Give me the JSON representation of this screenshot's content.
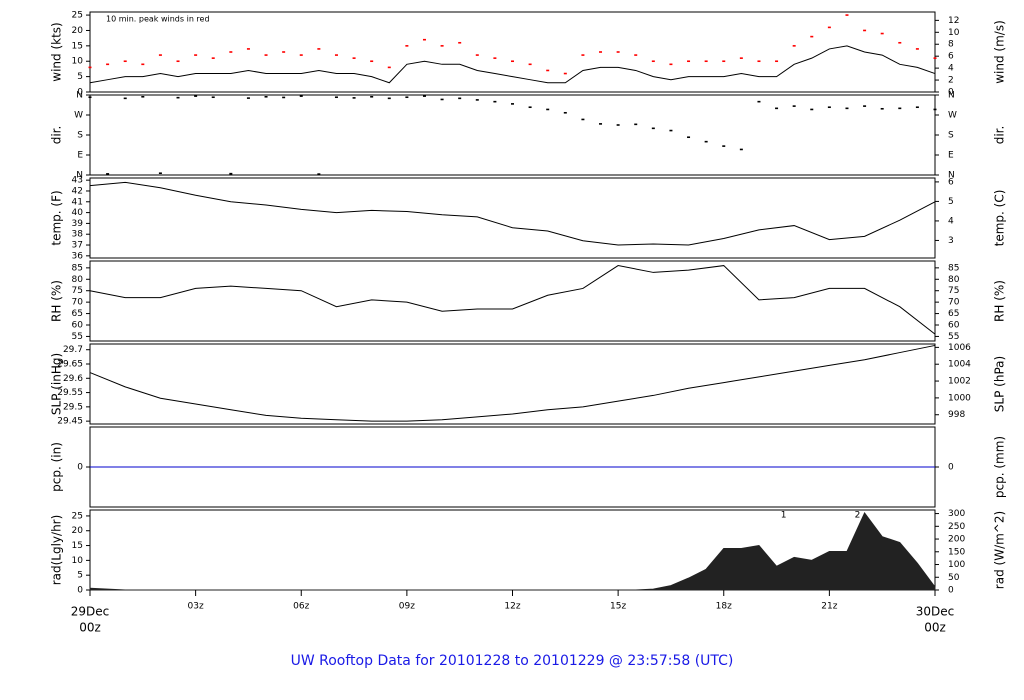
{
  "title": "UW Rooftop Data for 20101228  to  20101229 @ 23:57:58  (UTC)",
  "chart_data": [
    {
      "type": "line",
      "ylabel": "wind (kts)",
      "y2label": "wind (m/s)",
      "annotation": "10 min. peak winds in red",
      "ylim": [
        0,
        26
      ],
      "yticks": [
        0,
        5,
        10,
        15,
        20,
        25
      ],
      "y2lim": [
        0,
        13.4
      ],
      "y2ticks": [
        0,
        2,
        4,
        6,
        8,
        10,
        12
      ],
      "x": [
        0,
        0.5,
        1,
        1.5,
        2,
        2.5,
        3,
        3.5,
        4,
        4.5,
        5,
        5.5,
        6,
        6.5,
        7,
        7.5,
        8,
        8.5,
        9,
        9.5,
        10,
        10.5,
        11,
        11.5,
        12,
        12.5,
        13,
        13.5,
        14,
        14.5,
        15,
        15.5,
        16,
        16.5,
        17,
        17.5,
        18,
        18.5,
        19,
        19.5,
        20,
        20.5,
        21,
        21.5,
        22,
        22.5,
        23,
        23.5,
        24
      ],
      "series": [
        {
          "color": "#000000",
          "mark": "line",
          "values": [
            3,
            4,
            5,
            5,
            6,
            5,
            6,
            6,
            6,
            7,
            6,
            6,
            6,
            7,
            6,
            6,
            5,
            3,
            9,
            10,
            9,
            9,
            7,
            6,
            5,
            4,
            3,
            3,
            7,
            8,
            8,
            7,
            5,
            4,
            5,
            5,
            5,
            6,
            5,
            5,
            9,
            11,
            14,
            15,
            13,
            12,
            9,
            8,
            6
          ]
        },
        {
          "color": "#ff0000",
          "mark": "dot",
          "values": [
            8,
            9,
            10,
            9,
            12,
            10,
            12,
            11,
            13,
            14,
            12,
            13,
            12,
            14,
            12,
            11,
            10,
            8,
            15,
            17,
            15,
            16,
            12,
            11,
            10,
            9,
            7,
            6,
            12,
            13,
            13,
            12,
            10,
            9,
            10,
            10,
            10,
            11,
            10,
            10,
            15,
            18,
            21,
            25,
            20,
            19,
            16,
            14,
            11
          ]
        }
      ]
    },
    {
      "type": "scatter",
      "ylabel": "dir.",
      "y2label": "dir.",
      "ylim": [
        0,
        360
      ],
      "yticks": [
        {
          "value": 0,
          "label": "N"
        },
        {
          "value": 90,
          "label": "E"
        },
        {
          "value": 180,
          "label": "S"
        },
        {
          "value": 270,
          "label": "W"
        },
        {
          "value": 360,
          "label": "N"
        }
      ],
      "y2lim": [
        0,
        360
      ],
      "y2ticks": [
        {
          "value": 0,
          "label": "N"
        },
        {
          "value": 90,
          "label": "E"
        },
        {
          "value": 180,
          "label": "S"
        },
        {
          "value": 270,
          "label": "W"
        },
        {
          "value": 360,
          "label": "N"
        }
      ],
      "x": [
        0,
        0.5,
        1,
        1.5,
        2,
        2.5,
        3,
        3.5,
        4,
        4.5,
        5,
        5.5,
        6,
        6.5,
        7,
        7.5,
        8,
        8.5,
        9,
        9.5,
        10,
        10.5,
        11,
        11.5,
        12,
        12.5,
        13,
        13.5,
        14,
        14.5,
        15,
        15.5,
        16,
        16.5,
        17,
        17.5,
        18,
        18.5,
        19,
        19.5,
        20,
        20.5,
        21,
        21.5,
        22,
        22.5,
        23,
        23.5,
        24
      ],
      "series": [
        {
          "color": "#000000",
          "mark": "dot",
          "values": [
            350,
            5,
            345,
            352,
            8,
            348,
            355,
            350,
            6,
            346,
            352,
            349,
            355,
            4,
            350,
            347,
            352,
            345,
            350,
            355,
            340,
            345,
            338,
            330,
            320,
            305,
            295,
            280,
            250,
            230,
            225,
            228,
            210,
            200,
            170,
            150,
            130,
            115,
            330,
            300,
            310,
            295,
            305,
            300,
            310,
            298,
            300,
            305,
            295
          ]
        }
      ]
    },
    {
      "type": "line",
      "ylabel": "temp. (F)",
      "y2label": "temp. (C)",
      "ylim": [
        35.8,
        43.2
      ],
      "yticks": [
        36,
        37,
        38,
        39,
        40,
        41,
        42,
        43
      ],
      "y2lim": [
        2.1,
        6.2
      ],
      "y2ticks": [
        3,
        4,
        5,
        6
      ],
      "x": [
        0,
        1,
        2,
        3,
        4,
        5,
        6,
        7,
        8,
        9,
        10,
        11,
        12,
        13,
        14,
        15,
        16,
        17,
        18,
        19,
        20,
        21,
        22,
        23,
        24
      ],
      "series": [
        {
          "color": "#000000",
          "mark": "line",
          "values": [
            42.5,
            42.8,
            42.3,
            41.6,
            41,
            40.7,
            40.3,
            40,
            40.2,
            40.1,
            39.8,
            39.6,
            38.6,
            38.3,
            37.4,
            37,
            37.1,
            37,
            37.6,
            38.4,
            38.8,
            37.5,
            37.8,
            39.3,
            41
          ]
        }
      ]
    },
    {
      "type": "line",
      "ylabel": "RH (%)",
      "y2label": "RH (%)",
      "ylim": [
        53,
        88
      ],
      "yticks": [
        55,
        60,
        65,
        70,
        75,
        80,
        85
      ],
      "y2lim": [
        53,
        88
      ],
      "y2ticks": [
        55,
        60,
        65,
        70,
        75,
        80,
        85
      ],
      "x": [
        0,
        1,
        2,
        3,
        4,
        5,
        6,
        7,
        8,
        9,
        10,
        11,
        12,
        13,
        14,
        15,
        16,
        17,
        18,
        19,
        20,
        21,
        22,
        23,
        24
      ],
      "series": [
        {
          "color": "#000000",
          "mark": "line",
          "values": [
            75,
            72,
            72,
            76,
            77,
            76,
            75,
            68,
            71,
            70,
            66,
            67,
            67,
            73,
            76,
            86,
            83,
            84,
            86,
            71,
            72,
            76,
            76,
            68,
            56
          ]
        }
      ]
    },
    {
      "type": "line",
      "ylabel": "SLP (inHg)",
      "y2label": "SLP (hPa)",
      "ylim": [
        29.44,
        29.72
      ],
      "yticks": [
        29.45,
        29.5,
        29.55,
        29.6,
        29.65,
        29.7
      ],
      "y2lim": [
        996.9,
        1006.4
      ],
      "y2ticks": [
        998,
        1000,
        1002,
        1004,
        1006
      ],
      "x": [
        0,
        1,
        2,
        3,
        4,
        5,
        6,
        7,
        8,
        9,
        10,
        11,
        12,
        13,
        14,
        15,
        16,
        17,
        18,
        19,
        20,
        21,
        22,
        23,
        24
      ],
      "series": [
        {
          "color": "#000000",
          "mark": "line",
          "values": [
            29.62,
            29.57,
            29.53,
            29.51,
            29.49,
            29.47,
            29.46,
            29.455,
            29.45,
            29.45,
            29.455,
            29.465,
            29.475,
            29.49,
            29.5,
            29.52,
            29.54,
            29.565,
            29.585,
            29.605,
            29.625,
            29.645,
            29.665,
            29.69,
            29.715
          ]
        }
      ]
    },
    {
      "type": "line",
      "ylabel": "pcp. (in)",
      "y2label": "pcp. (mm)",
      "ylim": [
        -1,
        1
      ],
      "yticks": [
        0
      ],
      "y2lim": [
        -1,
        1
      ],
      "y2ticks": [
        0
      ],
      "x": [
        0,
        24
      ],
      "series": [
        {
          "color": "#0000cc",
          "mark": "line",
          "values": [
            0,
            0
          ]
        }
      ]
    },
    {
      "type": "area",
      "ylabel": "rad(Lgly/hr)",
      "y2label": "rad (W/m^2)",
      "ylim": [
        0,
        27
      ],
      "yticks": [
        0,
        5,
        10,
        15,
        20,
        25
      ],
      "y2lim": [
        0,
        314
      ],
      "y2ticks": [
        0,
        50,
        100,
        150,
        200,
        250,
        300
      ],
      "xlim": [
        0,
        24
      ],
      "xticks": [
        {
          "value": 0,
          "label": "00z"
        },
        {
          "value": 3,
          "label": "03z"
        },
        {
          "value": 6,
          "label": "06z"
        },
        {
          "value": 9,
          "label": "09z"
        },
        {
          "value": 12,
          "label": "12z"
        },
        {
          "value": 15,
          "label": "15z"
        },
        {
          "value": 18,
          "label": "18z"
        },
        {
          "value": 21,
          "label": "21z"
        },
        {
          "value": 24,
          "label": "00z"
        }
      ],
      "x_dates": [
        {
          "value": 0,
          "label": "29Dec"
        },
        {
          "value": 24,
          "label": "30Dec"
        }
      ],
      "edge_label_color": "#e00000",
      "markers": [
        {
          "x": 19.7,
          "label": "1"
        },
        {
          "x": 21.8,
          "label": "2"
        }
      ],
      "marker_color": "#8a2be2",
      "x": [
        0,
        0.5,
        1,
        1.5,
        2,
        2.5,
        3,
        3.5,
        4,
        4.5,
        5,
        5.5,
        6,
        6.5,
        7,
        7.5,
        8,
        8.5,
        9,
        9.5,
        10,
        10.5,
        11,
        11.5,
        12,
        12.5,
        13,
        13.5,
        14,
        14.5,
        15,
        15.5,
        16,
        16.5,
        17,
        17.5,
        18,
        18.5,
        19,
        19.5,
        20,
        20.5,
        21,
        21.5,
        22,
        22.5,
        23,
        23.5,
        24
      ],
      "series": [
        {
          "color": "#222222",
          "mark": "area",
          "values": [
            0.6,
            0.3,
            0,
            0,
            0,
            0,
            0,
            0,
            0,
            0,
            0,
            0,
            0,
            0,
            0,
            0,
            0,
            0,
            0,
            0,
            0,
            0,
            0,
            0,
            0,
            0,
            0,
            0,
            0,
            0,
            0,
            0,
            0.3,
            1.5,
            4,
            7,
            14,
            14,
            15,
            8,
            11,
            10,
            13,
            13,
            26,
            18,
            16,
            9,
            1
          ]
        }
      ]
    }
  ]
}
